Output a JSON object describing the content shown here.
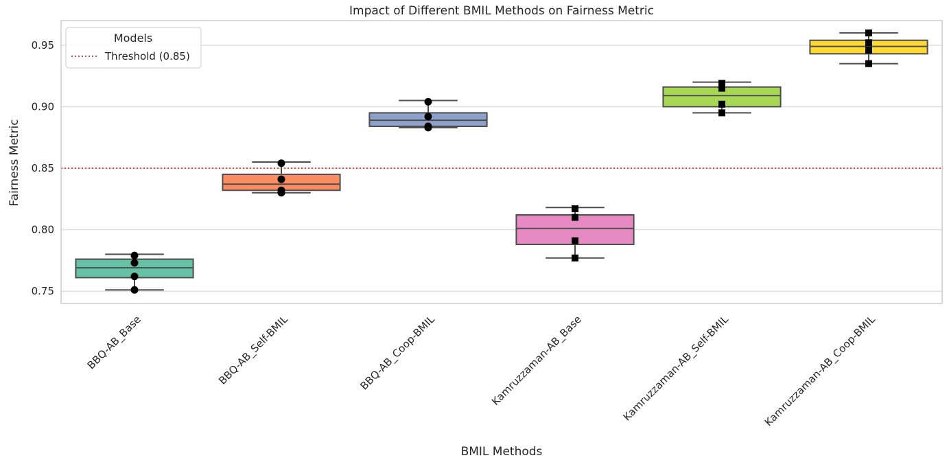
{
  "chart_data": {
    "type": "box",
    "title": "Impact of Different BMIL Methods on Fairness Metric",
    "xlabel": "BMIL Methods",
    "ylabel": "Fairness Metric",
    "ylim": [
      0.74,
      0.97
    ],
    "yticks": [
      0.75,
      0.8,
      0.85,
      0.9,
      0.95
    ],
    "ytick_labels": [
      "0.75",
      "0.80",
      "0.85",
      "0.90",
      "0.95"
    ],
    "grid": true,
    "legend": {
      "title": "Models",
      "placement": "top-left",
      "entries": [
        {
          "label": "Threshold (0.85)",
          "style": "dotted",
          "color": "#d04a4a"
        }
      ]
    },
    "threshold": {
      "value": 0.85,
      "color": "#d04a4a"
    },
    "categories": [
      "BBQ-AB_Base",
      "BBQ-AB_Self-BMIL",
      "BBQ-AB_Coop-BMIL",
      "Kamruzzaman-AB_Base",
      "Kamruzzaman-AB_Self-BMIL",
      "Kamruzzaman-AB_Coop-BMIL"
    ],
    "boxes": [
      {
        "min": 0.751,
        "q1": 0.761,
        "median": 0.769,
        "q3": 0.776,
        "max": 0.78,
        "color": "#66c2a5",
        "points": [
          0.751,
          0.762,
          0.773,
          0.779
        ],
        "marker": "circle"
      },
      {
        "min": 0.83,
        "q1": 0.832,
        "median": 0.837,
        "q3": 0.845,
        "max": 0.855,
        "color": "#fc8d62",
        "points": [
          0.83,
          0.832,
          0.841,
          0.854
        ],
        "marker": "circle"
      },
      {
        "min": 0.883,
        "q1": 0.884,
        "median": 0.889,
        "q3": 0.895,
        "max": 0.905,
        "color": "#8da0cb",
        "points": [
          0.883,
          0.884,
          0.892,
          0.904
        ],
        "marker": "circle"
      },
      {
        "min": 0.777,
        "q1": 0.788,
        "median": 0.801,
        "q3": 0.812,
        "max": 0.818,
        "color": "#e78ac3",
        "points": [
          0.777,
          0.791,
          0.81,
          0.817
        ],
        "marker": "square"
      },
      {
        "min": 0.895,
        "q1": 0.9,
        "median": 0.909,
        "q3": 0.916,
        "max": 0.92,
        "color": "#a6d854",
        "points": [
          0.895,
          0.902,
          0.915,
          0.919
        ],
        "marker": "square"
      },
      {
        "min": 0.935,
        "q1": 0.943,
        "median": 0.949,
        "q3": 0.954,
        "max": 0.96,
        "color": "#ffd92f",
        "points": [
          0.935,
          0.946,
          0.952,
          0.96
        ],
        "marker": "square"
      }
    ]
  }
}
